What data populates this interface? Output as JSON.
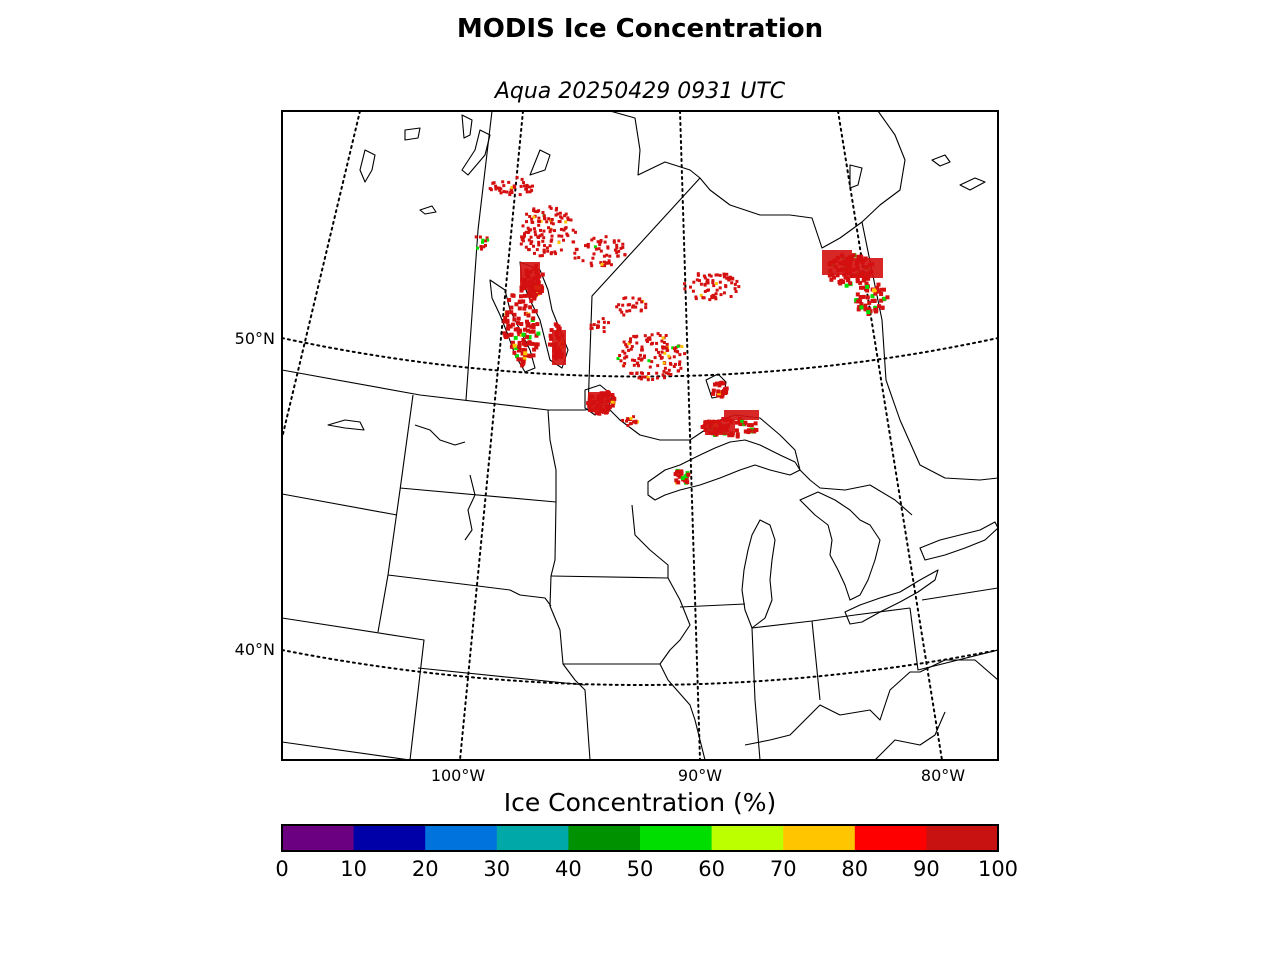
{
  "title": "MODIS Ice Concentration",
  "subtitle": "Aqua 20250429 0931 UTC",
  "latitude_labels": [
    "50°N",
    "40°N"
  ],
  "longitude_labels": [
    "100°W",
    "90°W",
    "80°W"
  ],
  "colorbar": {
    "title": "Ice Concentration (%)",
    "ticks": [
      "0",
      "10",
      "20",
      "30",
      "40",
      "50",
      "60",
      "70",
      "80",
      "90",
      "100"
    ],
    "colors": [
      "#6b0080",
      "#0000a8",
      "#0073dd",
      "#00a8a8",
      "#009100",
      "#00de00",
      "#bbff00",
      "#ffc600",
      "#ff0000",
      "#c81212"
    ]
  },
  "ice_colors": {
    "high": "#d40f0f",
    "medium": "#ffc600",
    "low": "#00de00"
  }
}
